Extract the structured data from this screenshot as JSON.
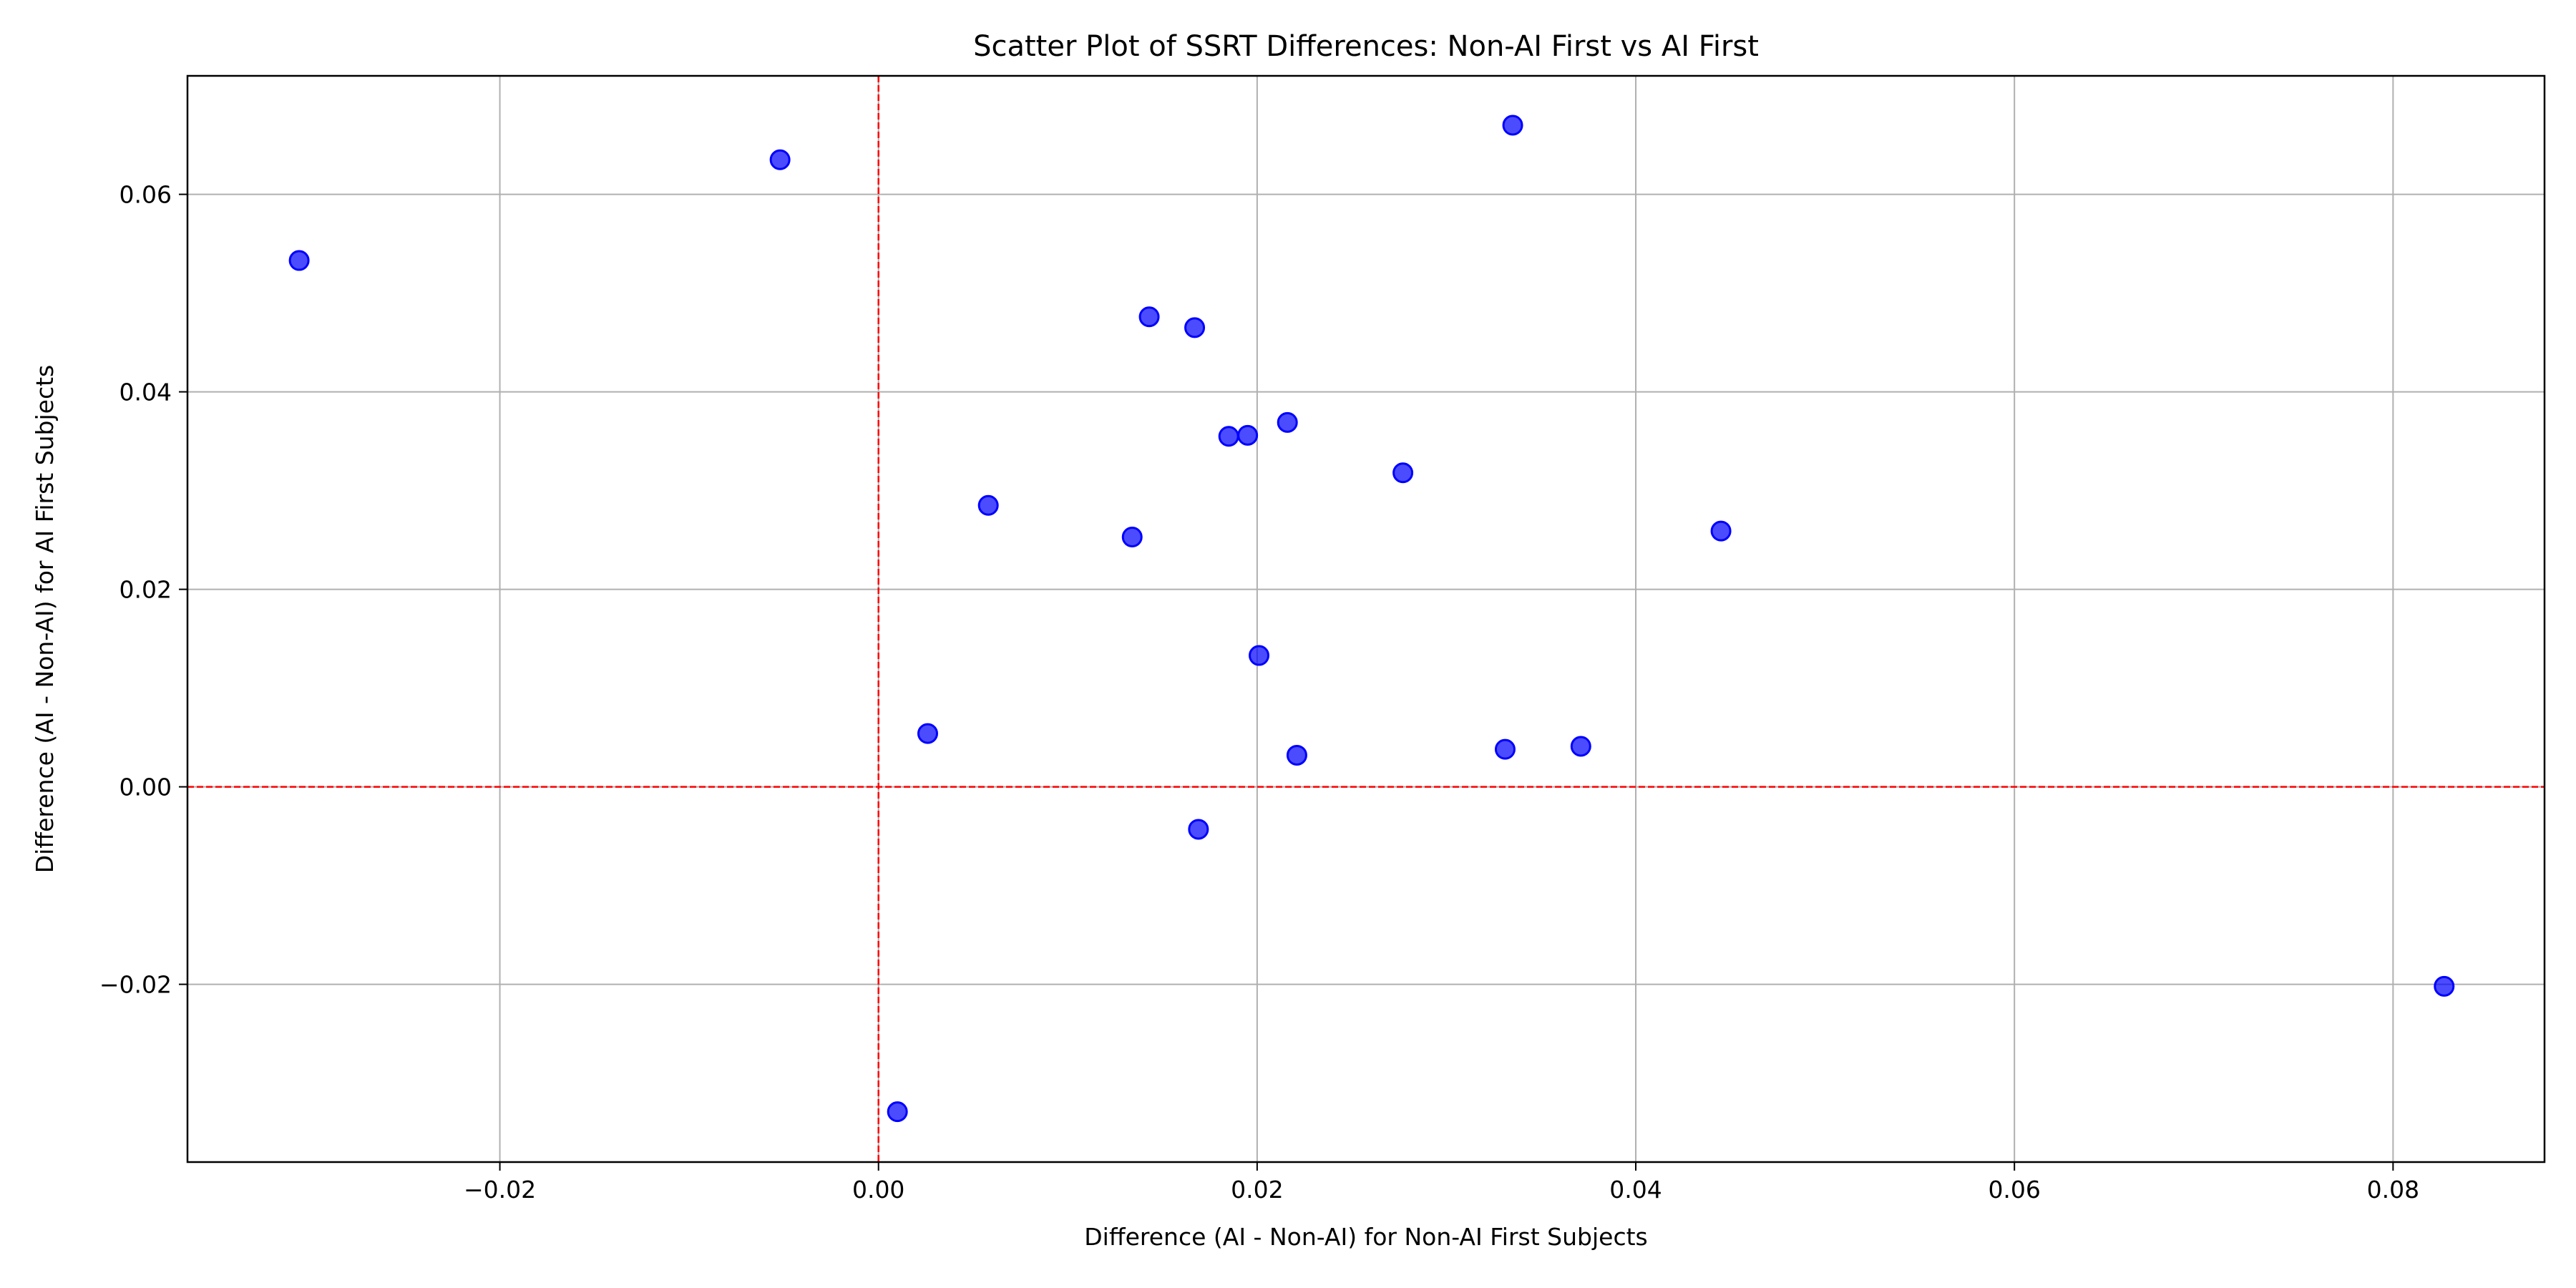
{
  "chart_data": {
    "type": "scatter",
    "title": "Scatter Plot of SSRT Differences: Non-AI First vs AI First",
    "xlabel": "Difference (AI - Non-AI) for Non-AI First Subjects",
    "ylabel": "Difference (AI - Non-AI) for AI First Subjects",
    "xlim": [
      -0.0365,
      0.088
    ],
    "ylim": [
      -0.038,
      0.072
    ],
    "xticks": [
      -0.02,
      0.0,
      0.02,
      0.04,
      0.06,
      0.08
    ],
    "xtick_labels": [
      "−0.02",
      "0.00",
      "0.02",
      "0.04",
      "0.06",
      "0.08"
    ],
    "yticks": [
      -0.02,
      0.0,
      0.02,
      0.04,
      0.06
    ],
    "ytick_labels": [
      "−0.02",
      "0.00",
      "0.02",
      "0.04",
      "0.06"
    ],
    "grid": true,
    "reference_lines": {
      "x": 0,
      "y": 0,
      "color": "#ff0000",
      "style": "dashed"
    },
    "marker_color": "#0000ff",
    "marker_alpha": 0.7,
    "points": [
      {
        "x": -0.0306,
        "y": 0.0533
      },
      {
        "x": -0.0052,
        "y": 0.0635
      },
      {
        "x": 0.0335,
        "y": 0.067
      },
      {
        "x": 0.0143,
        "y": 0.0476
      },
      {
        "x": 0.0167,
        "y": 0.0465
      },
      {
        "x": 0.0216,
        "y": 0.0369
      },
      {
        "x": 0.0185,
        "y": 0.0355
      },
      {
        "x": 0.0195,
        "y": 0.0356
      },
      {
        "x": 0.0277,
        "y": 0.0318
      },
      {
        "x": 0.0058,
        "y": 0.0285
      },
      {
        "x": 0.0134,
        "y": 0.0253
      },
      {
        "x": 0.0445,
        "y": 0.0259
      },
      {
        "x": 0.0201,
        "y": 0.0133
      },
      {
        "x": 0.0026,
        "y": 0.0054
      },
      {
        "x": 0.0221,
        "y": 0.0032
      },
      {
        "x": 0.0331,
        "y": 0.0038
      },
      {
        "x": 0.0371,
        "y": 0.0041
      },
      {
        "x": 0.0169,
        "y": -0.0043
      },
      {
        "x": 0.0827,
        "y": -0.0202
      },
      {
        "x": 0.001,
        "y": -0.0329
      }
    ]
  }
}
